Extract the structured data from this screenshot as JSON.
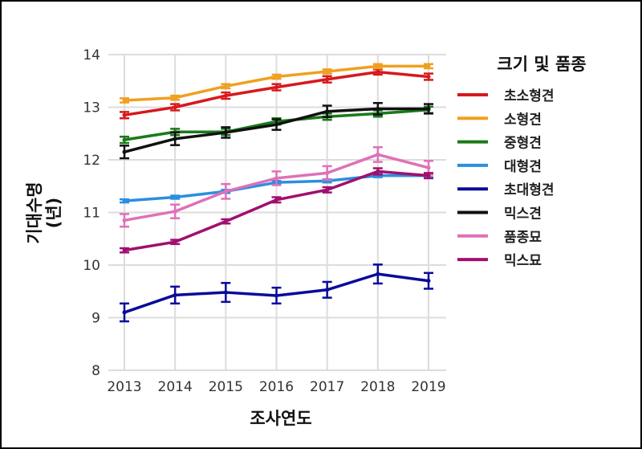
{
  "chart_data": {
    "type": "line",
    "title": "",
    "xlabel": "조사연도",
    "ylabel": [
      "기대수명",
      "(년)"
    ],
    "x": [
      2013,
      2014,
      2015,
      2016,
      2017,
      2018,
      2019
    ],
    "xticks": [
      "2013",
      "2014",
      "2015",
      "2016",
      "2017",
      "2018",
      "2019"
    ],
    "ylim": [
      8,
      14
    ],
    "yticks": [
      "8",
      "9",
      "10",
      "11",
      "12",
      "13",
      "14"
    ],
    "grid": true,
    "legend_title": "크기 및 품종",
    "legend_position": "right",
    "series": [
      {
        "name": "초소형견",
        "color": "#d7191c",
        "values": [
          12.85,
          13.0,
          13.22,
          13.38,
          13.53,
          13.67,
          13.58
        ],
        "err": [
          0.06,
          0.06,
          0.06,
          0.06,
          0.06,
          0.05,
          0.06
        ]
      },
      {
        "name": "소형견",
        "color": "#f0a020",
        "values": [
          13.13,
          13.18,
          13.4,
          13.58,
          13.68,
          13.78,
          13.78
        ],
        "err": [
          0.04,
          0.04,
          0.04,
          0.04,
          0.04,
          0.04,
          0.04
        ]
      },
      {
        "name": "중형견",
        "color": "#1a7a1a",
        "values": [
          12.38,
          12.53,
          12.53,
          12.73,
          12.82,
          12.88,
          12.95
        ],
        "err": [
          0.06,
          0.06,
          0.06,
          0.06,
          0.06,
          0.06,
          0.06
        ]
      },
      {
        "name": "대형견",
        "color": "#2b8fe0",
        "values": [
          11.22,
          11.29,
          11.4,
          11.57,
          11.6,
          11.7,
          11.7
        ],
        "err": [
          0.03,
          0.03,
          0.03,
          0.03,
          0.03,
          0.03,
          0.03
        ]
      },
      {
        "name": "초대형견",
        "color": "#0a0a9a",
        "values": [
          9.1,
          9.43,
          9.48,
          9.42,
          9.53,
          9.83,
          9.7
        ],
        "err": [
          0.17,
          0.16,
          0.18,
          0.15,
          0.15,
          0.18,
          0.15
        ]
      },
      {
        "name": "믹스견",
        "color": "#111111",
        "values": [
          12.15,
          12.4,
          12.52,
          12.67,
          12.92,
          12.97,
          12.97
        ],
        "err": [
          0.12,
          0.12,
          0.1,
          0.1,
          0.11,
          0.11,
          0.09
        ]
      },
      {
        "name": "품종묘",
        "color": "#e070b8",
        "values": [
          10.85,
          11.02,
          11.4,
          11.65,
          11.75,
          12.1,
          11.85
        ],
        "err": [
          0.12,
          0.13,
          0.14,
          0.13,
          0.13,
          0.14,
          0.13
        ]
      },
      {
        "name": "믹스묘",
        "color": "#a0106e",
        "values": [
          10.28,
          10.44,
          10.83,
          11.24,
          11.43,
          11.78,
          11.7
        ],
        "err": [
          0.04,
          0.04,
          0.04,
          0.05,
          0.05,
          0.06,
          0.05
        ]
      }
    ]
  }
}
